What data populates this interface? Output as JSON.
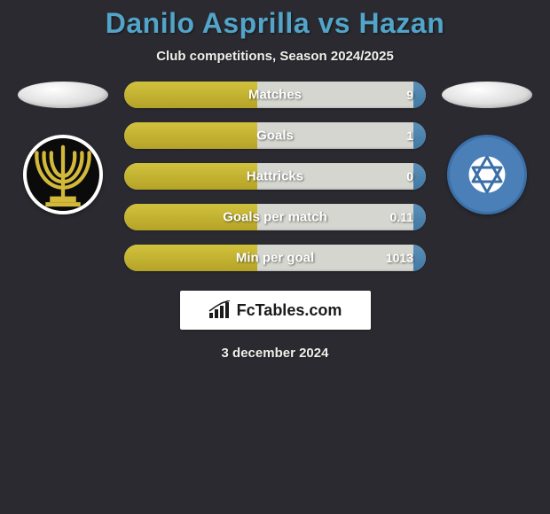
{
  "background_color": "#2a2a30",
  "header": {
    "title": "Danilo Asprilla vs Hazan",
    "title_color": "#52a4c9",
    "title_fontsize": 32,
    "subtitle": "Club competitions, Season 2024/2025",
    "subtitle_color": "#f0f0eb",
    "subtitle_fontsize": 15
  },
  "left_player": {
    "name": "Danilo Asprilla",
    "photo_placeholder_color": "#e8e8e8",
    "club_background": "#0b0b0b",
    "club_border": "#ffffff",
    "club_accent": "#d3b93a",
    "bar_color": "#b5a327"
  },
  "right_player": {
    "name": "Hazan",
    "photo_placeholder_color": "#e8e8e8",
    "club_background": "#4a7fb8",
    "club_border": "#3a6fa8",
    "bar_color": "#4179a4"
  },
  "stats": {
    "type": "horizontal-comparison-bars",
    "track_color": "#d6d6d0",
    "track_height": 30,
    "track_radius": 15,
    "label_color": "#ffffff",
    "label_fontsize": 15,
    "value_fontsize": 14,
    "rows": [
      {
        "label": "Matches",
        "left_value": "",
        "right_value": "9",
        "left_pct": 44,
        "right_pct": 4
      },
      {
        "label": "Goals",
        "left_value": "",
        "right_value": "1",
        "left_pct": 44,
        "right_pct": 4
      },
      {
        "label": "Hattricks",
        "left_value": "",
        "right_value": "0",
        "left_pct": 44,
        "right_pct": 4
      },
      {
        "label": "Goals per match",
        "left_value": "",
        "right_value": "0.11",
        "left_pct": 44,
        "right_pct": 4
      },
      {
        "label": "Min per goal",
        "left_value": "",
        "right_value": "1013",
        "left_pct": 44,
        "right_pct": 4
      }
    ]
  },
  "footer": {
    "site_label": "FcTables.com",
    "date": "3 december 2024",
    "box_background": "#ffffff",
    "text_color": "#1a1a1a"
  }
}
